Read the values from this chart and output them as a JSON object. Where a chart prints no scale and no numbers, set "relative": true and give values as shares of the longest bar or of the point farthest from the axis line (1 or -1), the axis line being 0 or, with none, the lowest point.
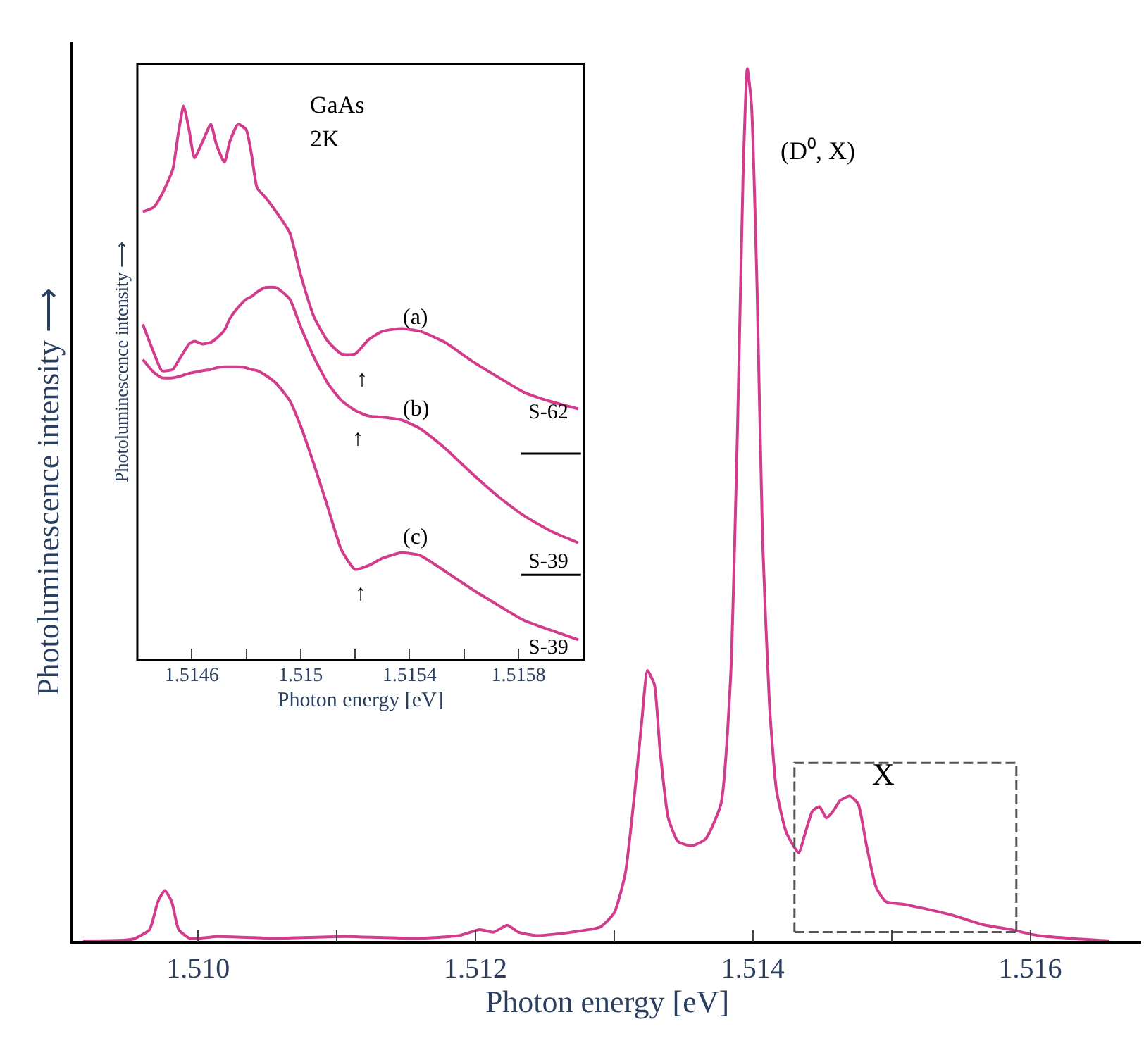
{
  "chart_data": [
    {
      "type": "line",
      "xlabel": "Photon energy [eV]",
      "ylabel": "Photoluminescence intensity ⟶",
      "relative": true,
      "xlim": [
        1.5091,
        1.5168
      ],
      "xticks": [
        {
          "value": 1.51,
          "label": "1.510"
        },
        {
          "value": 1.511,
          "label": null
        },
        {
          "value": 1.512,
          "label": "1.512"
        },
        {
          "value": 1.513,
          "label": null
        },
        {
          "value": 1.514,
          "label": "1.514"
        },
        {
          "value": 1.515,
          "label": null
        },
        {
          "value": 1.516,
          "label": "1.516"
        }
      ],
      "x": [
        1.50917,
        1.50953,
        1.50965,
        1.50971,
        1.50976,
        1.50981,
        1.50986,
        1.50994,
        1.51014,
        1.51055,
        1.51106,
        1.51157,
        1.51188,
        1.51203,
        1.51213,
        1.51223,
        1.51231,
        1.51244,
        1.51269,
        1.5129,
        1.513,
        1.51308,
        1.51315,
        1.5132,
        1.51324,
        1.51329,
        1.51333,
        1.51339,
        1.51346,
        1.51356,
        1.51366,
        1.51377,
        1.51384,
        1.51389,
        1.51393,
        1.51396,
        1.51399,
        1.51403,
        1.51407,
        1.51412,
        1.51417,
        1.51424,
        1.51433,
        1.51438,
        1.51443,
        1.51448,
        1.51453,
        1.51458,
        1.51463,
        1.5147,
        1.51476,
        1.51482,
        1.51489,
        1.51496,
        1.51509,
        1.51524,
        1.51545,
        1.51565,
        1.51586,
        1.51606,
        1.51637,
        1.51657
      ],
      "series": [
        {
          "color": "#d23c8c",
          "values": [
            0,
            0.002,
            0.013,
            0.045,
            0.058,
            0.045,
            0.013,
            0.003,
            0.005,
            0.003,
            0.005,
            0.003,
            0.006,
            0.013,
            0.01,
            0.018,
            0.01,
            0.006,
            0.01,
            0.016,
            0.032,
            0.077,
            0.173,
            0.253,
            0.31,
            0.294,
            0.22,
            0.141,
            0.114,
            0.109,
            0.117,
            0.157,
            0.303,
            0.591,
            0.88,
            1,
            0.959,
            0.751,
            0.461,
            0.27,
            0.173,
            0.125,
            0.101,
            0.125,
            0.149,
            0.154,
            0.141,
            0.149,
            0.161,
            0.166,
            0.157,
            0.109,
            0.061,
            0.045,
            0.042,
            0.037,
            0.029,
            0.019,
            0.013,
            0.006,
            0.002,
            0
          ]
        },
        {
          "color": "#555555",
          "line_style": "dashed",
          "x": [
            1.5143,
            1.5143,
            1.5159,
            1.5159
          ],
          "values": [
            0.01,
            0.204,
            0.204,
            0.01
          ]
        },
        {
          "color": "#555555",
          "line_style": "dashed",
          "x": [
            1.5143,
            1.5159
          ],
          "values": [
            0.01,
            0.01
          ]
        }
      ],
      "annotations": [
        "(D⁰, X)",
        "X"
      ]
    },
    {
      "type": "line",
      "xlabel": "Photon energy [eV]",
      "ylabel": "Photoluminescence intensity ⟶",
      "relative": true,
      "xlim": [
        1.5144,
        1.51604
      ],
      "xticks": [
        1.5146,
        {
          "value": 1.5148,
          "label": null
        },
        1.515,
        {
          "value": 1.5152,
          "label": null
        },
        1.5154,
        {
          "value": 1.5156,
          "label": null
        },
        1.5158
      ],
      "x": [
        1.51442,
        1.51446,
        1.51449,
        1.51453,
        1.51455,
        1.51457,
        1.51459,
        1.51461,
        1.51464,
        1.51467,
        1.51469,
        1.51472,
        1.51474,
        1.51477,
        1.5148,
        1.51482,
        1.51484,
        1.51487,
        1.51491,
        1.51496,
        1.515,
        1.51505,
        1.5151,
        1.51515,
        1.5152,
        1.51525,
        1.5153,
        1.51537,
        1.51544,
        1.51553,
        1.51563,
        1.51573,
        1.51582,
        1.51592,
        1.51602
      ],
      "series": [
        {
          "color": "#d23c8c",
          "values": [
            0.809,
            0.817,
            0.84,
            0.885,
            0.949,
            1,
            0.957,
            0.906,
            0.936,
            0.967,
            0.931,
            0.898,
            0.936,
            0.967,
            0.957,
            0.911,
            0.852,
            0.835,
            0.809,
            0.771,
            0.695,
            0.618,
            0.575,
            0.552,
            0.552,
            0.578,
            0.593,
            0.598,
            0.593,
            0.573,
            0.539,
            0.509,
            0.483,
            0.466,
            0.453
          ]
        },
        {
          "color": "#d23c8c",
          "values": [
            0.606,
            0.555,
            0.522,
            0.524,
            0.539,
            0.555,
            0.57,
            0.575,
            0.57,
            0.573,
            0.58,
            0.595,
            0.616,
            0.636,
            0.651,
            0.656,
            0.664,
            0.672,
            0.672,
            0.651,
            0.601,
            0.545,
            0.499,
            0.468,
            0.45,
            0.44,
            0.438,
            0.433,
            0.417,
            0.382,
            0.336,
            0.293,
            0.26,
            0.232,
            0.211
          ]
        },
        {
          "color": "#d23c8c",
          "values": [
            0.542,
            0.519,
            0.509,
            0.509,
            0.511,
            0.514,
            0.517,
            0.519,
            0.522,
            0.524,
            0.527,
            0.529,
            0.529,
            0.529,
            0.527,
            0.524,
            0.522,
            0.514,
            0.499,
            0.468,
            0.422,
            0.351,
            0.275,
            0.198,
            0.163,
            0.17,
            0.183,
            0.193,
            0.188,
            0.16,
            0.127,
            0.097,
            0.071,
            0.053,
            0.036
          ]
        },
        {
          "color": "#000000",
          "x": [
            1.51581,
            1.51603
          ],
          "values": [
            0.372,
            0.372
          ]
        },
        {
          "color": "#000000",
          "x": [
            1.51581,
            1.51603
          ],
          "values": [
            0.153,
            0.153
          ]
        }
      ],
      "annotations": [
        "GaAs",
        "2K",
        "(a)",
        "(b)",
        "(c)",
        "↑",
        "↑",
        "↑",
        "S-62",
        "S-39",
        "S-39"
      ]
    }
  ]
}
